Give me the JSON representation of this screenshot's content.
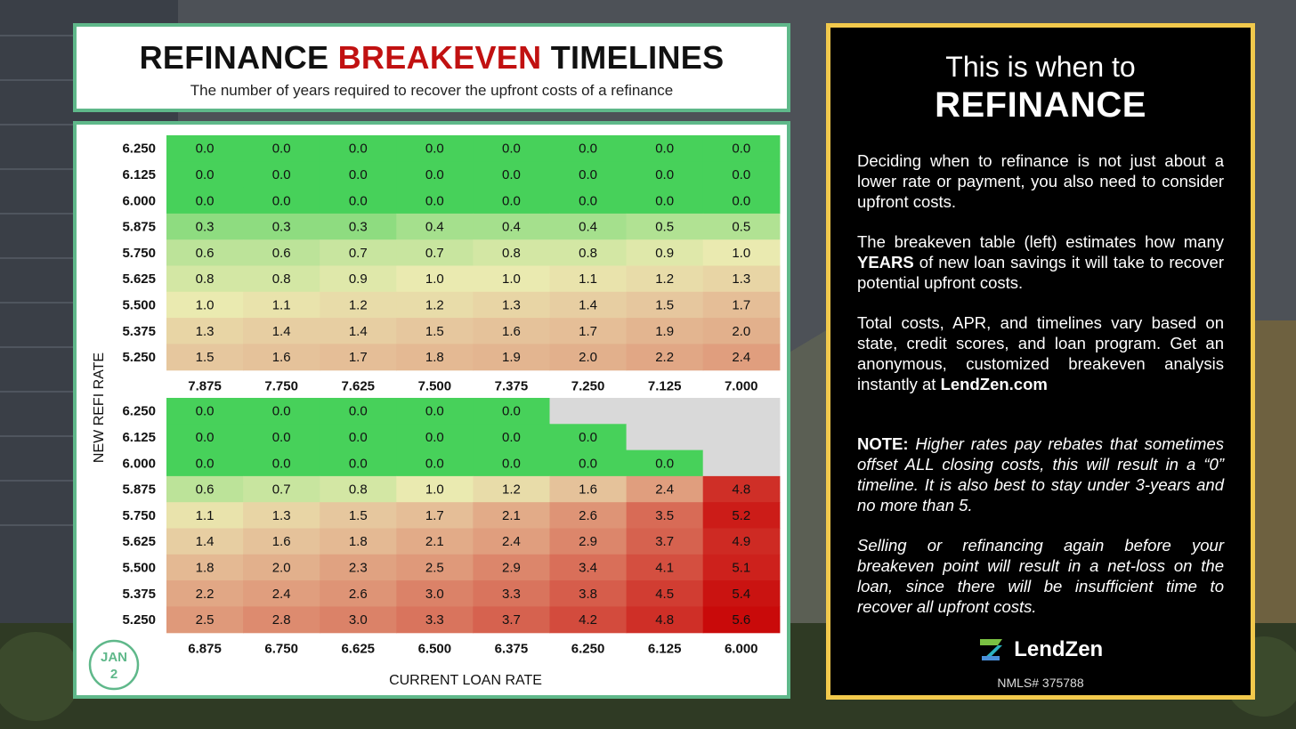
{
  "header": {
    "title_part1": "REFINANCE",
    "title_highlight": "BREAKEVEN",
    "title_part2": "TIMELINES",
    "subtitle": "The number of years required to recover the upfront costs of a refinance"
  },
  "badge": {
    "month": "JAN",
    "day": "2"
  },
  "side": {
    "heading_line1": "This is when to",
    "heading_line2": "REFINANCE",
    "para1": "Deciding when to refinance is not just about a lower rate or payment, you also need to consider upfront costs.",
    "para2_pre": "The breakeven table (left) estimates how many",
    "para2_bold": "YEARS",
    "para2_post": "of new loan savings it will take to recover potential upfront costs.",
    "para3_pre": "Total costs, APR, and timelines vary based on state, credit scores, and loan program. Get an anonymous, customized breakeven analysis instantly at",
    "para3_link": "LendZen.com",
    "note_label": "NOTE:",
    "note_text": "Higher rates pay rebates that sometimes offset ALL closing costs, this will result in a “0” timeline. It is also best to stay under 3-years and no more than 5.",
    "para5": "Selling or refinancing again before your breakeven point will result in a net-loss on the loan, since there will be insufficient time to recover all upfront costs.",
    "brand": "LendZen",
    "nmls": "NMLS# 375788"
  },
  "colors": {
    "green": "#47d15a",
    "light_green": "#a5e08d",
    "pale_yellow": "#eaeab0",
    "tan": "#e6c79e",
    "red": "#c90a0a",
    "na": "#d9d9d9",
    "panel_border": "#5fb88a",
    "side_border": "#f2c94c"
  },
  "chart_data": [
    {
      "type": "heatmap",
      "xlabel": "CURRENT LOAN RATE",
      "ylabel": "NEW REFI RATE",
      "x": [
        "7.875",
        "7.750",
        "7.625",
        "7.500",
        "7.375",
        "7.250",
        "7.125",
        "7.000"
      ],
      "y": [
        "6.250",
        "6.125",
        "6.000",
        "5.875",
        "5.750",
        "5.625",
        "5.500",
        "5.375",
        "5.250"
      ],
      "values": [
        [
          0.0,
          0.0,
          0.0,
          0.0,
          0.0,
          0.0,
          0.0,
          0.0
        ],
        [
          0.0,
          0.0,
          0.0,
          0.0,
          0.0,
          0.0,
          0.0,
          0.0
        ],
        [
          0.0,
          0.0,
          0.0,
          0.0,
          0.0,
          0.0,
          0.0,
          0.0
        ],
        [
          0.3,
          0.3,
          0.3,
          0.4,
          0.4,
          0.4,
          0.5,
          0.5
        ],
        [
          0.6,
          0.6,
          0.7,
          0.7,
          0.8,
          0.8,
          0.9,
          1.0
        ],
        [
          0.8,
          0.8,
          0.9,
          1.0,
          1.0,
          1.1,
          1.2,
          1.3
        ],
        [
          1.0,
          1.1,
          1.2,
          1.2,
          1.3,
          1.4,
          1.5,
          1.7
        ],
        [
          1.3,
          1.4,
          1.4,
          1.5,
          1.6,
          1.7,
          1.9,
          2.0
        ],
        [
          1.5,
          1.6,
          1.7,
          1.8,
          1.9,
          2.0,
          2.2,
          2.4
        ]
      ]
    },
    {
      "type": "heatmap",
      "xlabel": "CURRENT LOAN RATE",
      "ylabel": "NEW REFI RATE",
      "x": [
        "6.875",
        "6.750",
        "6.625",
        "6.500",
        "6.375",
        "6.250",
        "6.125",
        "6.000"
      ],
      "y": [
        "6.250",
        "6.125",
        "6.000",
        "5.875",
        "5.750",
        "5.625",
        "5.500",
        "5.375",
        "5.250"
      ],
      "values": [
        [
          0.0,
          0.0,
          0.0,
          0.0,
          0.0,
          null,
          null,
          null
        ],
        [
          0.0,
          0.0,
          0.0,
          0.0,
          0.0,
          0.0,
          null,
          null
        ],
        [
          0.0,
          0.0,
          0.0,
          0.0,
          0.0,
          0.0,
          0.0,
          null
        ],
        [
          0.6,
          0.7,
          0.8,
          1.0,
          1.2,
          1.6,
          2.4,
          4.8
        ],
        [
          1.1,
          1.3,
          1.5,
          1.7,
          2.1,
          2.6,
          3.5,
          5.2
        ],
        [
          1.4,
          1.6,
          1.8,
          2.1,
          2.4,
          2.9,
          3.7,
          4.9
        ],
        [
          1.8,
          2.0,
          2.3,
          2.5,
          2.9,
          3.4,
          4.1,
          5.1
        ],
        [
          2.2,
          2.4,
          2.6,
          3.0,
          3.3,
          3.8,
          4.5,
          5.4
        ],
        [
          2.5,
          2.8,
          3.0,
          3.3,
          3.7,
          4.2,
          4.8,
          5.6
        ]
      ]
    }
  ]
}
